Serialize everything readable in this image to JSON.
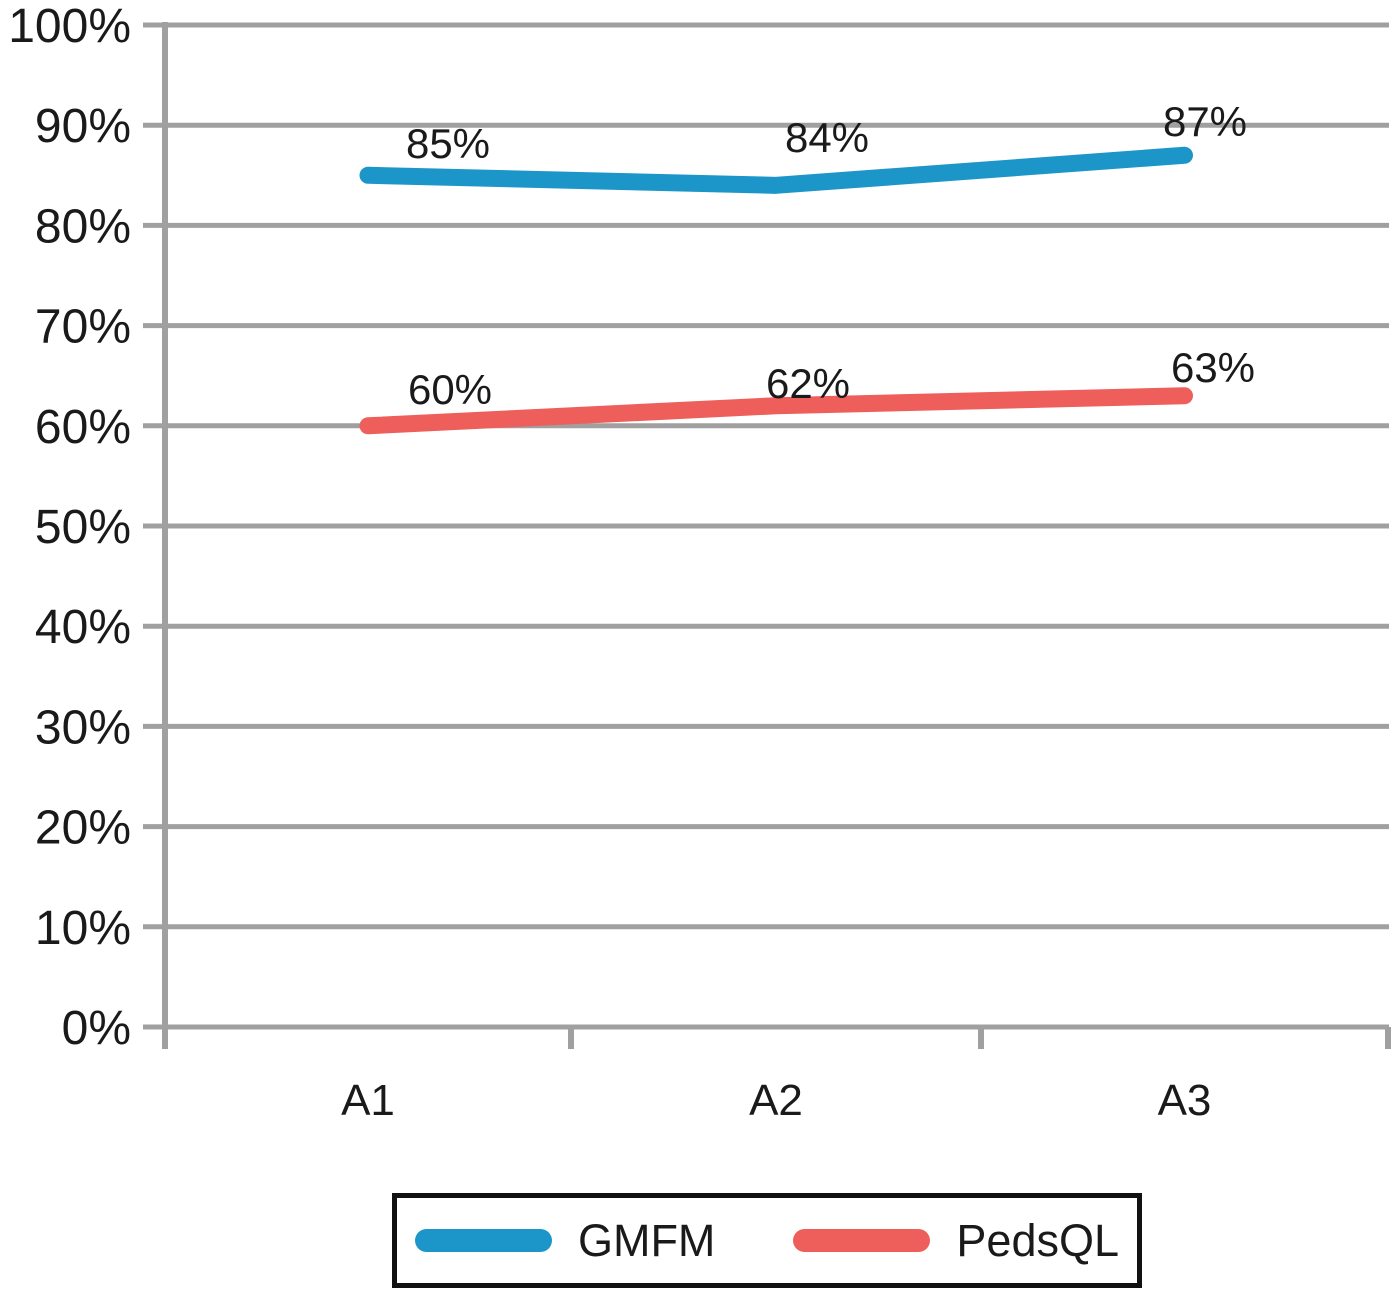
{
  "chart_data": {
    "type": "line",
    "categories": [
      "A1",
      "A2",
      "A3"
    ],
    "series": [
      {
        "name": "GMFM",
        "values": [
          85,
          84,
          87
        ],
        "labels": [
          "85%",
          "84%",
          "87%"
        ],
        "color": "#1c96c8"
      },
      {
        "name": "PedsQL",
        "values": [
          60,
          62,
          63
        ],
        "labels": [
          "60%",
          "62%",
          "63%"
        ],
        "color": "#ee5e5a"
      }
    ],
    "title": "",
    "xlabel": "",
    "ylabel": "",
    "ylim": [
      0,
      100
    ],
    "y_tick_step": 10,
    "y_ticks": [
      {
        "value": 0,
        "label": "0%"
      },
      {
        "value": 10,
        "label": "10%"
      },
      {
        "value": 20,
        "label": "20%"
      },
      {
        "value": 30,
        "label": "30%"
      },
      {
        "value": 40,
        "label": "40%"
      },
      {
        "value": 50,
        "label": "50%"
      },
      {
        "value": 60,
        "label": "60%"
      },
      {
        "value": 70,
        "label": "70%"
      },
      {
        "value": 80,
        "label": "80%"
      },
      {
        "value": 90,
        "label": "90%"
      },
      {
        "value": 100,
        "label": "100%"
      }
    ],
    "grid": true,
    "legend_position": "bottom",
    "axis_color": "#a0a0a0",
    "text_color": "#1a1a1a"
  }
}
